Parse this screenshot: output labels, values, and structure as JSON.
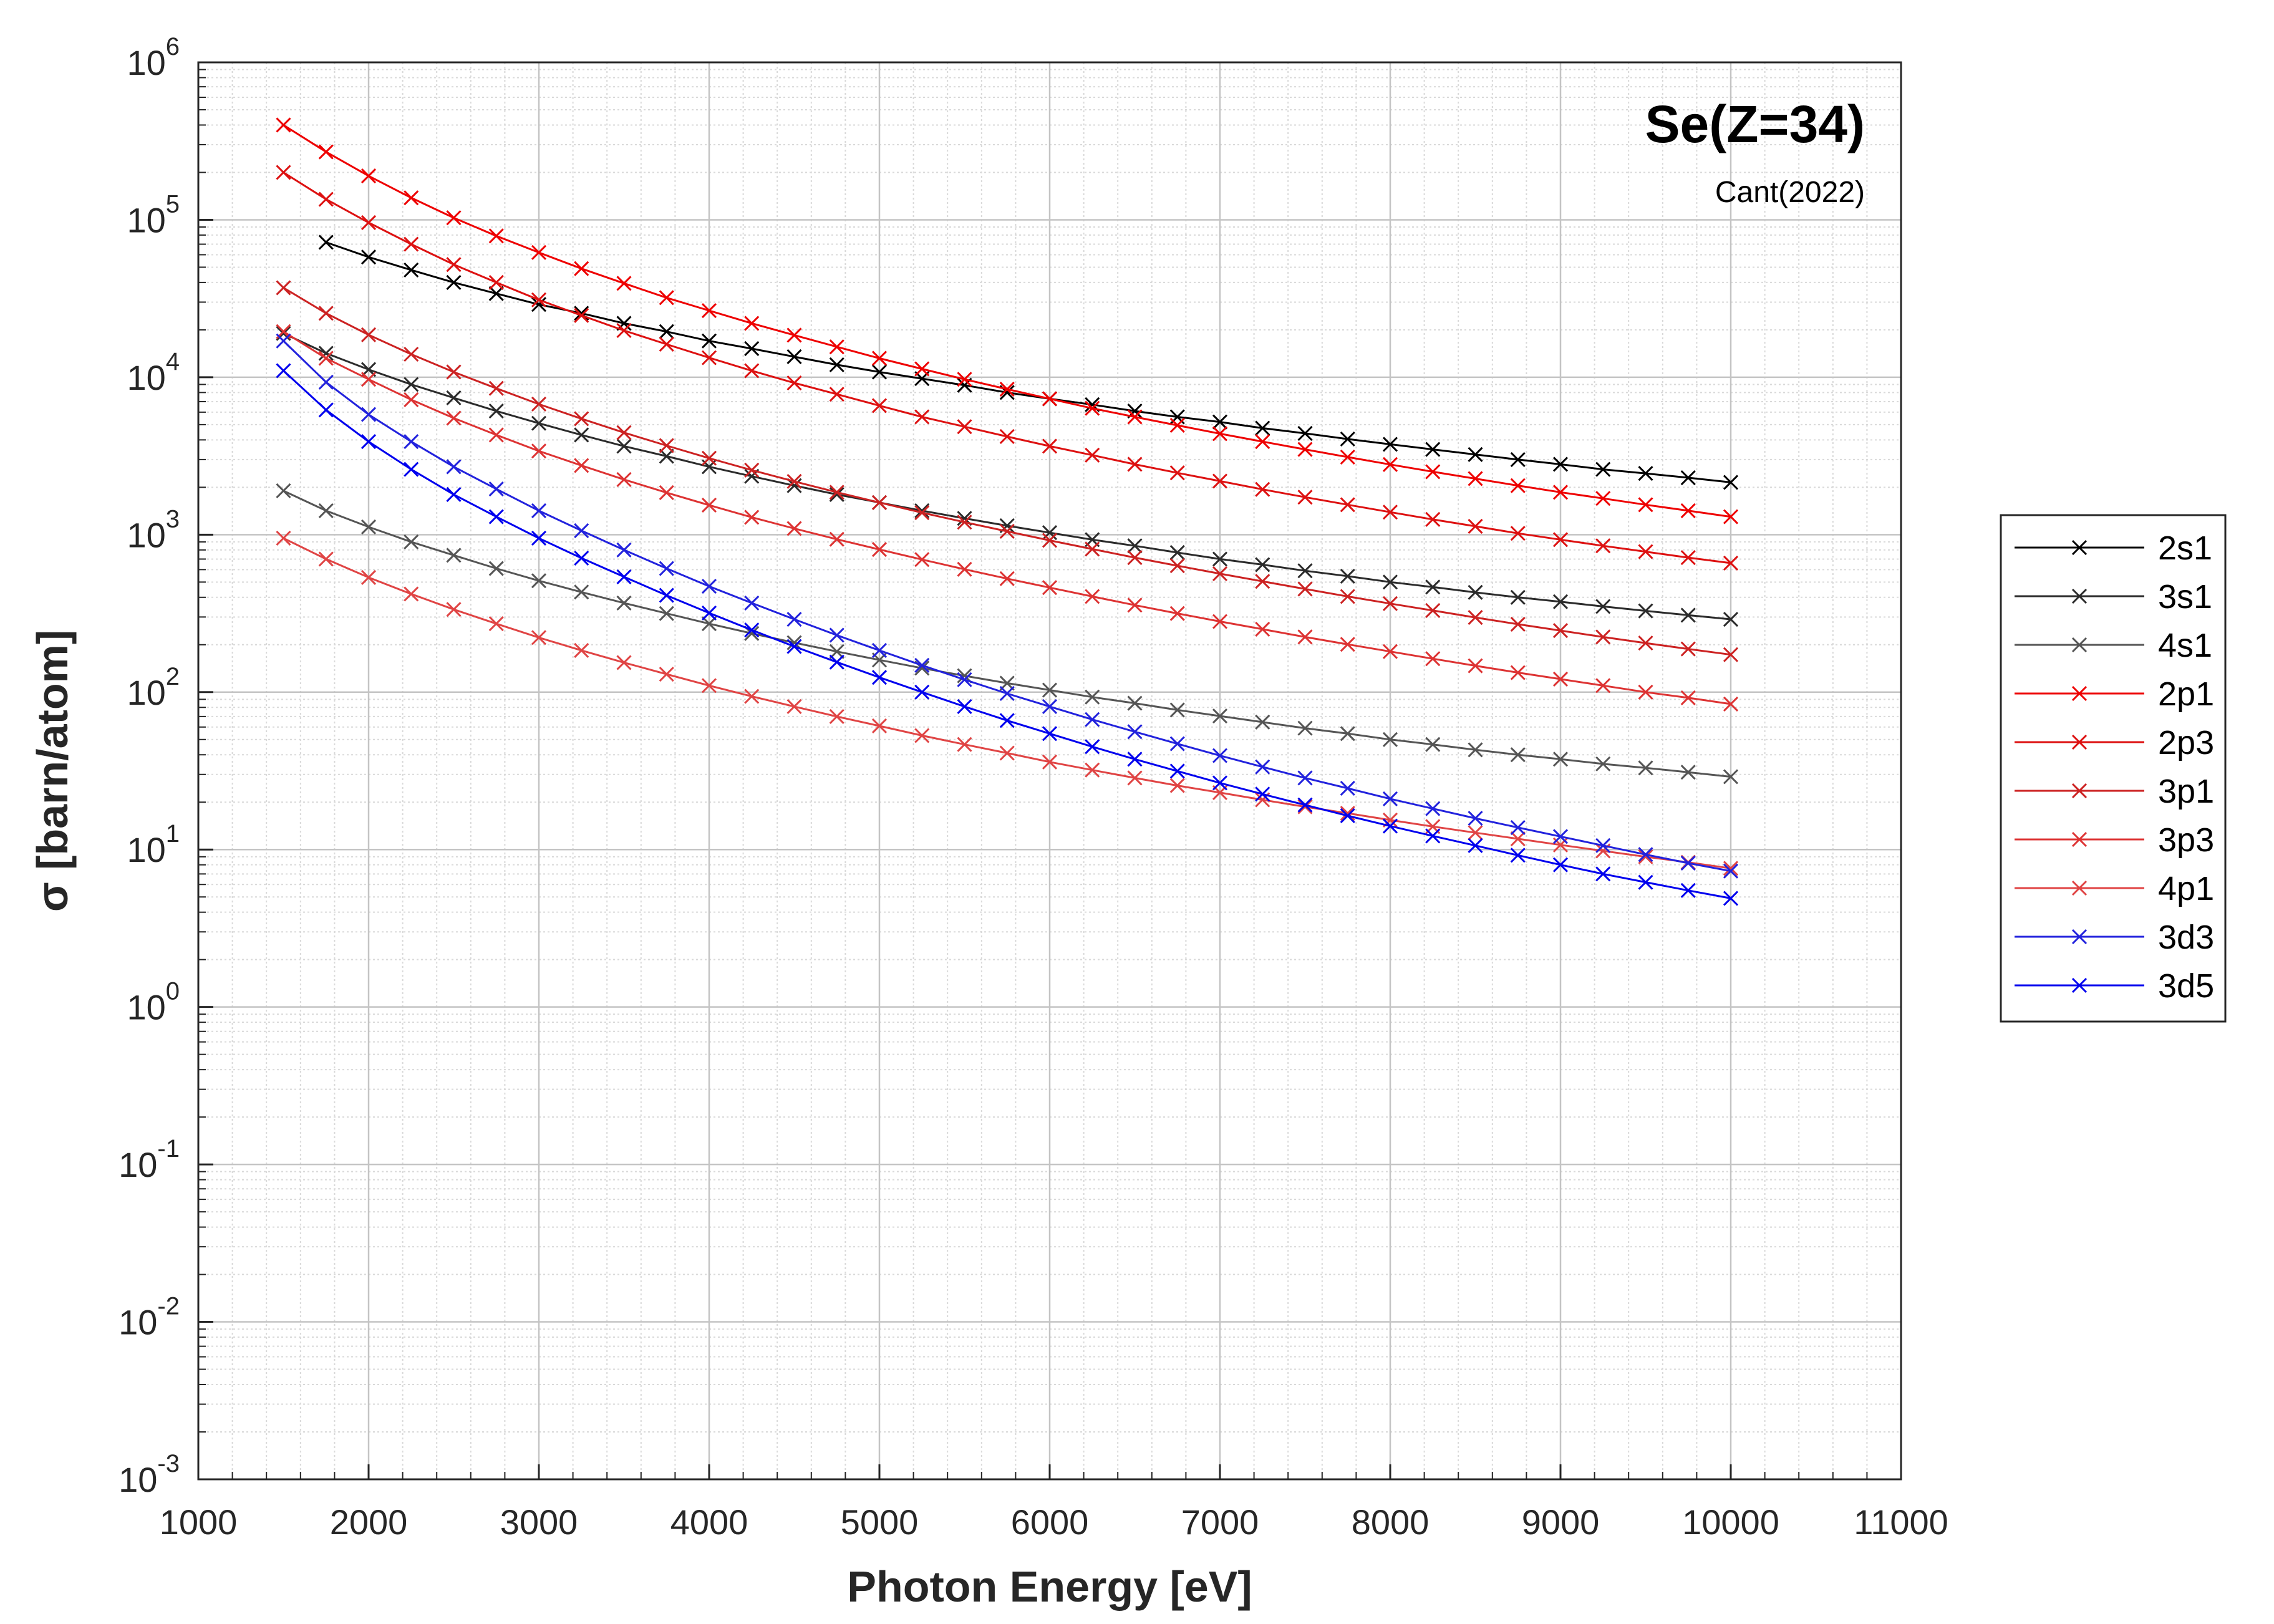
{
  "chart_data": {
    "type": "line",
    "title": "Se(Z=34)",
    "subtitle": "Cant(2022)",
    "xlabel": "Photon Energy [eV]",
    "ylabel": "σ [barn/atom]",
    "xlim": [
      1000,
      11000
    ],
    "ylim": [
      0.001,
      1000000
    ],
    "yscale": "log",
    "grid": true,
    "legend_position": "outside-right",
    "xticks": [
      "1000",
      "2000",
      "3000",
      "4000",
      "5000",
      "6000",
      "7000",
      "8000",
      "9000",
      "10000",
      "11000"
    ],
    "yticks": [
      {
        "base": "10",
        "exp": "6"
      },
      {
        "base": "10",
        "exp": "5"
      },
      {
        "base": "10",
        "exp": "4"
      },
      {
        "base": "10",
        "exp": "3"
      },
      {
        "base": "10",
        "exp": "2"
      },
      {
        "base": "10",
        "exp": "1"
      },
      {
        "base": "10",
        "exp": "0"
      },
      {
        "base": "10",
        "exp": "-1"
      },
      {
        "base": "10",
        "exp": "-2"
      },
      {
        "base": "10",
        "exp": "-3"
      }
    ],
    "x": [
      1500,
      1750,
      2000,
      2250,
      2500,
      2750,
      3000,
      3250,
      3500,
      3750,
      4000,
      4250,
      4500,
      4750,
      5000,
      5250,
      5500,
      5750,
      6000,
      6250,
      6500,
      6750,
      7000,
      7250,
      7500,
      7750,
      8000,
      8250,
      8500,
      8750,
      9000,
      9250,
      9500,
      9750,
      10000
    ],
    "series": [
      {
        "name": "2s1",
        "color": "#000000",
        "values": [
          null,
          72000,
          58000,
          48000,
          40000,
          34000,
          29000,
          25500,
          22000,
          19500,
          17000,
          15200,
          13500,
          12000,
          10800,
          9800,
          8900,
          8000,
          7300,
          6700,
          6100,
          5600,
          5200,
          4750,
          4400,
          4050,
          3750,
          3480,
          3230,
          3000,
          2800,
          2600,
          2450,
          2300,
          2150
        ]
      },
      {
        "name": "3s1",
        "color": "#2b2b2b",
        "values": [
          19000,
          14200,
          11200,
          9000,
          7400,
          6100,
          5100,
          4300,
          3650,
          3150,
          2700,
          2350,
          2050,
          1800,
          1600,
          1420,
          1270,
          1140,
          1030,
          930,
          850,
          770,
          700,
          645,
          590,
          545,
          500,
          465,
          430,
          400,
          375,
          350,
          328,
          308,
          290
        ]
      },
      {
        "name": "4s1",
        "color": "#555555",
        "values": [
          1900,
          1420,
          1120,
          900,
          740,
          610,
          510,
          432,
          368,
          316,
          272,
          236,
          206,
          181,
          160,
          142,
          127,
          114,
          103,
          93,
          85,
          77,
          70.5,
          64.5,
          59,
          54.5,
          50,
          46.5,
          43,
          40,
          37.5,
          35,
          33,
          31,
          29
        ]
      },
      {
        "name": "2p1",
        "color": "#ee0000",
        "values": [
          400000,
          270000,
          190000,
          138000,
          103000,
          79000,
          62000,
          49000,
          39500,
          32000,
          26500,
          22000,
          18500,
          15600,
          13200,
          11300,
          9700,
          8400,
          7300,
          6350,
          5600,
          4950,
          4380,
          3900,
          3480,
          3110,
          2790,
          2510,
          2270,
          2050,
          1860,
          1700,
          1550,
          1420,
          1300
        ]
      },
      {
        "name": "2p3",
        "color": "#dd1111",
        "values": [
          200000,
          135000,
          96000,
          70000,
          52000,
          40000,
          31000,
          24700,
          19800,
          16200,
          13300,
          11000,
          9200,
          7800,
          6600,
          5600,
          4850,
          4200,
          3650,
          3200,
          2800,
          2470,
          2190,
          1940,
          1730,
          1550,
          1390,
          1250,
          1130,
          1020,
          930,
          850,
          780,
          715,
          660
        ]
      },
      {
        "name": "3p1",
        "color": "#cc2222",
        "values": [
          37000,
          25500,
          18600,
          14000,
          10800,
          8500,
          6750,
          5450,
          4450,
          3680,
          3060,
          2570,
          2180,
          1860,
          1600,
          1380,
          1200,
          1050,
          920,
          810,
          715,
          635,
          565,
          505,
          452,
          405,
          365,
          330,
          298,
          270,
          246,
          224,
          205,
          188,
          173
        ]
      },
      {
        "name": "3p3",
        "color": "#dd3333",
        "values": [
          19500,
          13200,
          9700,
          7200,
          5500,
          4300,
          3400,
          2750,
          2240,
          1850,
          1540,
          1290,
          1095,
          935,
          805,
          695,
          603,
          526,
          461,
          405,
          357,
          316,
          281,
          251,
          224,
          201,
          181,
          163,
          147,
          133,
          121,
          110,
          100,
          92,
          84
        ]
      },
      {
        "name": "4p1",
        "color": "#e04444",
        "values": [
          950,
          700,
          535,
          420,
          335,
          272,
          222,
          184,
          154,
          130,
          110,
          94,
          81,
          70,
          61,
          53,
          46.5,
          41,
          36,
          32,
          28.5,
          25.5,
          23,
          20.7,
          18.7,
          17,
          15.4,
          14,
          12.8,
          11.7,
          10.7,
          9.8,
          9,
          8.3,
          7.6
        ]
      },
      {
        "name": "3d3",
        "color": "#2222dd",
        "values": [
          17000,
          9300,
          5800,
          3900,
          2700,
          1950,
          1420,
          1060,
          800,
          610,
          470,
          368,
          290,
          230,
          184,
          148,
          120,
          98,
          81,
          67,
          56,
          47,
          39.5,
          33.5,
          28.5,
          24.5,
          21,
          18.2,
          15.8,
          13.8,
          12.1,
          10.6,
          9.3,
          8.2,
          7.3
        ]
      },
      {
        "name": "3d5",
        "color": "#0000ee",
        "values": [
          11000,
          6200,
          3900,
          2600,
          1800,
          1300,
          950,
          710,
          540,
          412,
          318,
          248,
          195,
          155,
          124,
          100,
          81,
          66,
          54.5,
          45,
          37.5,
          31.5,
          26.5,
          22.5,
          19.2,
          16.4,
          14.1,
          12.2,
          10.6,
          9.2,
          8,
          7,
          6.2,
          5.5,
          4.9
        ]
      }
    ]
  }
}
